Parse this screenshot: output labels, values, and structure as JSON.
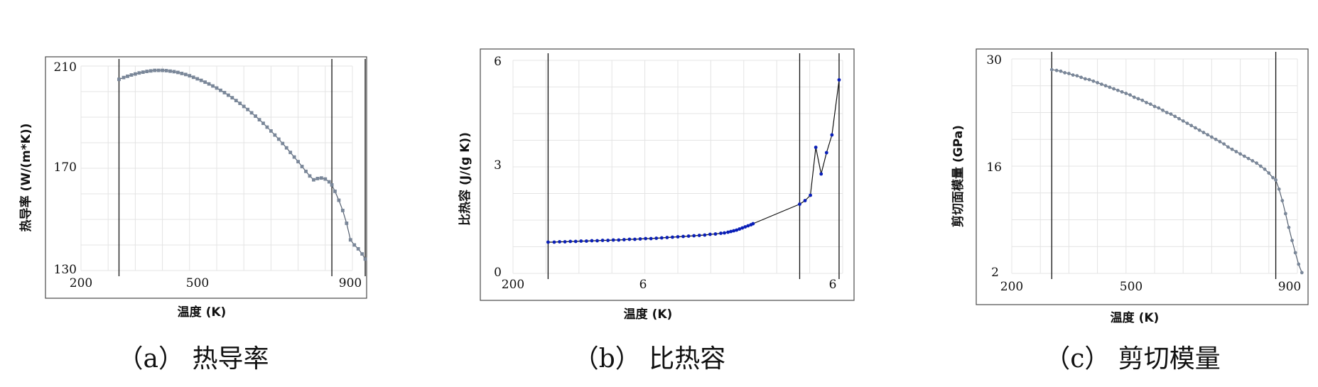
{
  "chart_data": [
    {
      "type": "line",
      "panel": "a",
      "caption": "（a） 热导率",
      "xlabel": "温度 (K)",
      "ylabel": "热导率 (W/(m*K))",
      "xlim": [
        200,
        900
      ],
      "ylim": [
        130,
        210
      ],
      "xticks": [
        "200",
        "500",
        "900"
      ],
      "yticks": [
        "130",
        "170",
        "210"
      ],
      "vlines": [
        298,
        847,
        933
      ],
      "color": "#7a8799",
      "x": [
        298,
        310,
        320,
        330,
        340,
        350,
        360,
        370,
        380,
        390,
        400,
        410,
        420,
        430,
        440,
        450,
        460,
        470,
        480,
        490,
        500,
        510,
        520,
        530,
        540,
        550,
        560,
        570,
        580,
        590,
        600,
        610,
        620,
        630,
        640,
        650,
        660,
        670,
        680,
        690,
        700,
        710,
        720,
        730,
        740,
        750,
        760,
        770,
        780,
        790,
        800,
        810,
        820,
        830,
        840,
        847,
        855,
        865,
        875,
        885,
        895,
        905,
        915,
        925,
        933
      ],
      "y": [
        204.8,
        205.5,
        206.0,
        206.5,
        206.9,
        207.3,
        207.6,
        207.9,
        208.1,
        208.3,
        208.3,
        208.3,
        208.2,
        208.0,
        207.8,
        207.5,
        207.1,
        206.7,
        206.2,
        205.6,
        205.0,
        204.4,
        203.7,
        203.0,
        202.2,
        201.4,
        200.5,
        199.6,
        198.6,
        197.6,
        196.5,
        195.4,
        194.2,
        193.0,
        191.7,
        190.4,
        189.0,
        187.6,
        186.1,
        184.6,
        183.0,
        181.4,
        179.7,
        178.0,
        176.2,
        174.4,
        172.6,
        170.7,
        168.8,
        167.0,
        165.5,
        166.0,
        166.2,
        165.8,
        164.7,
        163.5,
        161.0,
        157.5,
        153.5,
        148.5,
        142.0,
        140.0,
        138.5,
        136.5,
        134.5
      ]
    },
    {
      "type": "line",
      "panel": "b",
      "caption": "（b） 比热容",
      "xlabel": "温度 (K)",
      "ylabel": "比热容 (J/(g K))",
      "xlim": [
        200,
        1120
      ],
      "ylim": [
        0,
        6
      ],
      "xticks": [
        "200",
        "6",
        "6"
      ],
      "yticks": [
        "0",
        "3",
        "6"
      ],
      "vlines": [
        298,
        1000,
        1110
      ],
      "color": "#0a1fb8",
      "x": [
        298,
        315,
        330,
        345,
        360,
        375,
        390,
        405,
        420,
        435,
        450,
        465,
        480,
        495,
        510,
        525,
        540,
        555,
        570,
        585,
        600,
        615,
        630,
        645,
        660,
        675,
        690,
        705,
        720,
        735,
        750,
        765,
        780,
        790,
        800,
        808,
        816,
        824,
        832,
        840,
        848,
        856,
        864,
        870,
        1000,
        1015,
        1030,
        1045,
        1060,
        1075,
        1090,
        1110
      ],
      "y": [
        0.88,
        0.88,
        0.89,
        0.89,
        0.9,
        0.9,
        0.91,
        0.91,
        0.92,
        0.92,
        0.93,
        0.93,
        0.94,
        0.94,
        0.95,
        0.96,
        0.96,
        0.97,
        0.98,
        0.98,
        0.99,
        1.0,
        1.01,
        1.02,
        1.03,
        1.04,
        1.05,
        1.06,
        1.07,
        1.08,
        1.1,
        1.11,
        1.13,
        1.14,
        1.16,
        1.18,
        1.2,
        1.22,
        1.25,
        1.28,
        1.31,
        1.34,
        1.37,
        1.4,
        1.95,
        2.05,
        2.2,
        3.55,
        2.8,
        3.4,
        3.9,
        5.45
      ]
    },
    {
      "type": "line",
      "panel": "c",
      "caption": "（c） 剪切模量",
      "xlabel": "温度 (K)",
      "ylabel": "剪切面模量 (GPa)",
      "xlim": [
        200,
        900
      ],
      "ylim": [
        2,
        30
      ],
      "xticks": [
        "200",
        "500",
        "900"
      ],
      "yticks": [
        "2",
        "16",
        "30"
      ],
      "vlines": [
        298,
        847
      ],
      "color": "#7a8799",
      "x": [
        298,
        310,
        320,
        330,
        340,
        350,
        360,
        370,
        380,
        390,
        400,
        410,
        420,
        430,
        440,
        450,
        460,
        470,
        480,
        490,
        500,
        510,
        520,
        530,
        540,
        550,
        560,
        570,
        580,
        590,
        600,
        610,
        620,
        630,
        640,
        650,
        660,
        670,
        680,
        690,
        700,
        710,
        720,
        730,
        740,
        750,
        760,
        770,
        780,
        790,
        800,
        810,
        820,
        830,
        840,
        847,
        855,
        863,
        871,
        879,
        887,
        895,
        903,
        911
      ],
      "y": [
        28.6,
        28.5,
        28.4,
        28.2,
        28.1,
        27.9,
        27.8,
        27.6,
        27.4,
        27.3,
        27.1,
        26.9,
        26.7,
        26.5,
        26.3,
        26.1,
        25.9,
        25.7,
        25.5,
        25.3,
        25.0,
        24.8,
        24.6,
        24.3,
        24.1,
        23.8,
        23.6,
        23.3,
        23.0,
        22.8,
        22.5,
        22.2,
        21.9,
        21.6,
        21.3,
        21.0,
        20.7,
        20.4,
        20.1,
        19.8,
        19.5,
        19.2,
        18.9,
        18.5,
        18.2,
        17.9,
        17.6,
        17.3,
        17.0,
        16.7,
        16.4,
        16.0,
        15.6,
        15.1,
        14.5,
        14.2,
        13.0,
        11.5,
        9.8,
        8.0,
        6.3,
        4.7,
        3.2,
        2.1
      ]
    }
  ]
}
